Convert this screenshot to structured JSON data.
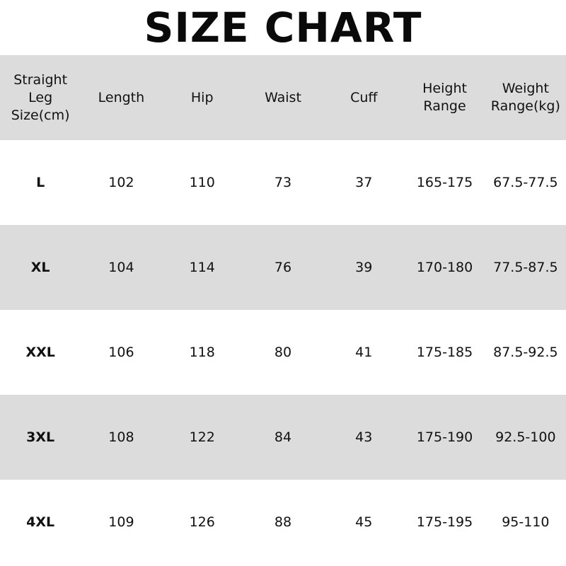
{
  "title": "SIZE CHART",
  "headers": [
    "Straight Leg Size(cm)",
    "Length",
    "Hip",
    "Waist",
    "Cuff",
    "Height Range",
    "Weight Range(kg)"
  ],
  "header_lines": [
    [
      "Straight",
      "Leg",
      "Size(cm)"
    ],
    [
      "Length"
    ],
    [
      "Hip"
    ],
    [
      "Waist"
    ],
    [
      "Cuff"
    ],
    [
      "Height",
      "Range"
    ],
    [
      "Weight",
      "Range(kg)"
    ]
  ],
  "rows": [
    [
      "L",
      "102",
      "110",
      "73",
      "37",
      "165-175",
      "67.5-77.5"
    ],
    [
      "XL",
      "104",
      "114",
      "76",
      "39",
      "170-180",
      "77.5-87.5"
    ],
    [
      "XXL",
      "106",
      "118",
      "80",
      "41",
      "175-185",
      "87.5-92.5"
    ],
    [
      "3XL",
      "108",
      "122",
      "84",
      "43",
      "175-190",
      "92.5-100"
    ],
    [
      "4XL",
      "109",
      "126",
      "88",
      "45",
      "175-195",
      "95-110"
    ]
  ],
  "colors": {
    "band": "#dcdcdc",
    "background": "#ffffff",
    "text": "#111111"
  }
}
